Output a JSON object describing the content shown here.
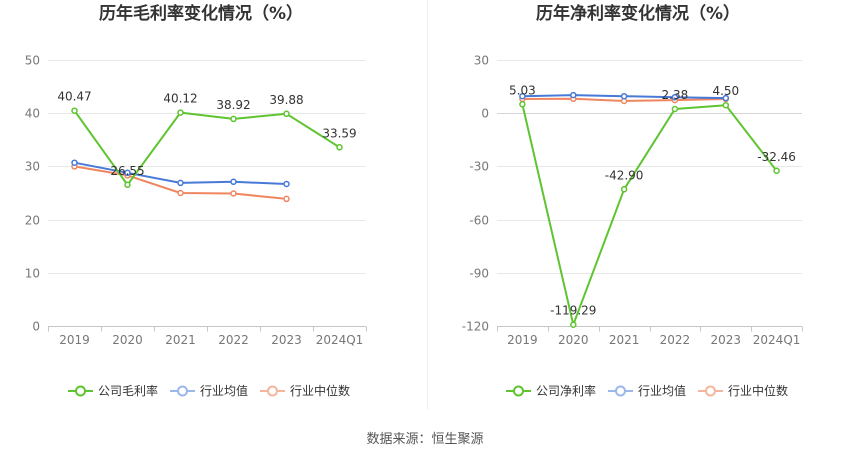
{
  "footer": {
    "source": "数据来源：恒生聚源"
  },
  "chart_data": [
    {
      "type": "line",
      "title": "历年毛利率变化情况（%）",
      "xlabel": "",
      "ylabel": "",
      "categories": [
        "2019",
        "2020",
        "2021",
        "2022",
        "2023",
        "2024Q1"
      ],
      "ylim": [
        0,
        50
      ],
      "yticks": [
        0,
        10,
        20,
        30,
        40,
        50
      ],
      "grid": true,
      "legend_position": "bottom",
      "series": [
        {
          "name": "公司毛利率",
          "color": "#5ec42f",
          "legend_color": "#5ec42f",
          "values": [
            40.47,
            26.55,
            40.12,
            38.92,
            39.88,
            33.59
          ],
          "labels": [
            "40.47",
            "26.55",
            "40.12",
            "38.92",
            "39.88",
            "33.59"
          ]
        },
        {
          "name": "行业均值",
          "color": "#4779d8",
          "legend_color": "#9bb7ec",
          "values": [
            30.7,
            28.8,
            26.9,
            27.1,
            26.7,
            null
          ]
        },
        {
          "name": "行业中位数",
          "color": "#f08660",
          "legend_color": "#f4b59c",
          "values": [
            30.0,
            28.3,
            25.0,
            24.9,
            23.9,
            null
          ]
        }
      ]
    },
    {
      "type": "line",
      "title": "历年净利率变化情况（%）",
      "xlabel": "",
      "ylabel": "",
      "categories": [
        "2019",
        "2020",
        "2021",
        "2022",
        "2023",
        "2024Q1"
      ],
      "ylim": [
        -120,
        30
      ],
      "yticks": [
        -120,
        -90,
        -60,
        -30,
        0,
        30
      ],
      "grid": true,
      "legend_position": "bottom",
      "series": [
        {
          "name": "公司净利率",
          "color": "#5ec42f",
          "legend_color": "#5ec42f",
          "values": [
            5.03,
            -119.29,
            -42.9,
            2.38,
            4.5,
            -32.46
          ],
          "labels": [
            "5.03",
            "-119.29",
            "-42.90",
            "2.38",
            "4.50",
            "-32.46"
          ]
        },
        {
          "name": "行业均值",
          "color": "#4779d8",
          "legend_color": "#9bb7ec",
          "values": [
            9.6,
            10.2,
            9.6,
            9.0,
            8.5,
            null
          ]
        },
        {
          "name": "行业中位数",
          "color": "#f08660",
          "legend_color": "#f4b59c",
          "values": [
            8.0,
            8.1,
            6.9,
            7.4,
            8.0,
            null
          ]
        }
      ]
    }
  ]
}
